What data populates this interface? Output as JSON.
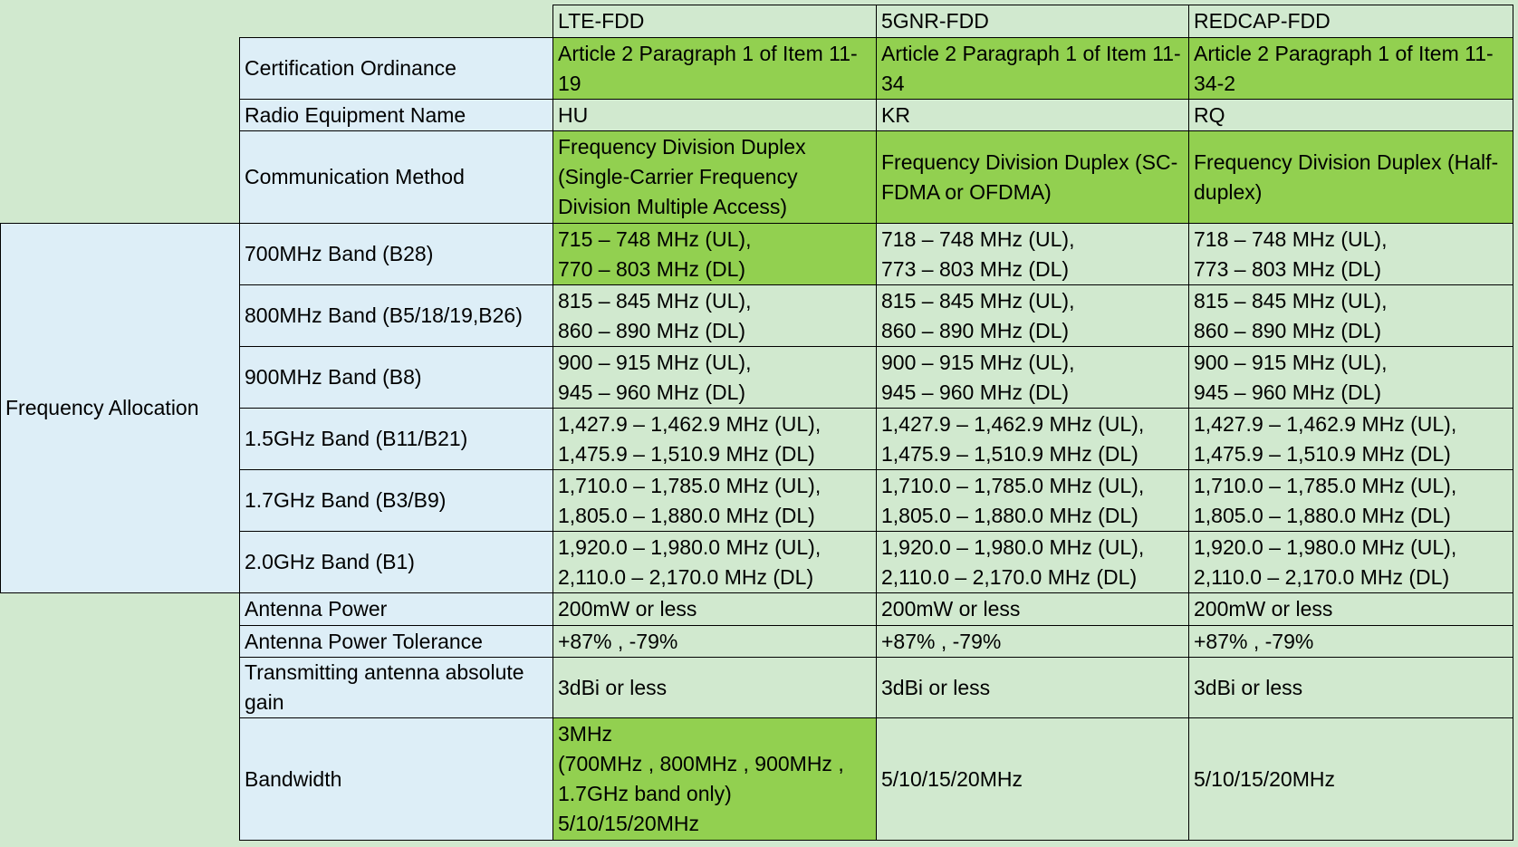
{
  "table": {
    "columns": [
      "LTE-FDD",
      "5GNR-FDD",
      "REDCAP-FDD"
    ],
    "group": "Frequency Allocation",
    "rows": [
      {
        "label": "Certification Ordinance",
        "cells": [
          "Article 2 Paragraph 1 of Item 11-19",
          "Article 2 Paragraph 1 of Item 11-34",
          "Article 2 Paragraph 1 of Item 11-34-2"
        ]
      },
      {
        "label": "Radio Equipment Name",
        "cells": [
          "HU",
          "KR",
          "RQ"
        ]
      },
      {
        "label": "Communication Method",
        "cells": [
          "Frequency Division Duplex (Single-Carrier Frequency Division Multiple Access)",
          "Frequency Division Duplex (SC-FDMA or OFDMA)",
          "Frequency Division Duplex (Half-duplex)"
        ]
      },
      {
        "label": "700MHz Band (B28)",
        "cells": [
          "715 – 748 MHz (UL),\n770 – 803 MHz (DL)",
          "718 – 748 MHz (UL),\n773 – 803 MHz (DL)",
          "718 – 748 MHz (UL),\n773 – 803 MHz (DL)"
        ]
      },
      {
        "label": "800MHz Band (B5/18/19,B26)",
        "cells": [
          "815 – 845 MHz (UL),\n860 – 890 MHz (DL)",
          "815 – 845 MHz (UL),\n860 – 890 MHz (DL)",
          "815 – 845 MHz (UL),\n860 – 890 MHz (DL)"
        ]
      },
      {
        "label": "900MHz Band (B8)",
        "cells": [
          "900 – 915 MHz (UL),\n945 – 960 MHz (DL)",
          "900 – 915 MHz (UL),\n945 – 960 MHz (DL)",
          "900 – 915 MHz (UL),\n945 – 960 MHz (DL)"
        ]
      },
      {
        "label": "1.5GHz Band (B11/B21)",
        "cells": [
          "1,427.9 – 1,462.9 MHz (UL),\n1,475.9 – 1,510.9 MHz (DL)",
          "1,427.9 – 1,462.9 MHz (UL),\n1,475.9 – 1,510.9 MHz (DL)",
          "1,427.9 – 1,462.9 MHz (UL),\n1,475.9 – 1,510.9 MHz (DL)"
        ]
      },
      {
        "label": "1.7GHz Band (B3/B9)",
        "cells": [
          "1,710.0 – 1,785.0 MHz (UL),\n1,805.0 – 1,880.0 MHz (DL)",
          "1,710.0 – 1,785.0 MHz (UL),\n1,805.0 – 1,880.0 MHz (DL)",
          "1,710.0 – 1,785.0 MHz (UL),\n1,805.0 – 1,880.0 MHz (DL)"
        ]
      },
      {
        "label": "2.0GHz Band (B1)",
        "cells": [
          "1,920.0 – 1,980.0 MHz (UL),\n2,110.0 – 2,170.0 MHz (DL)",
          "1,920.0 – 1,980.0 MHz (UL),\n2,110.0 – 2,170.0 MHz (DL)",
          "1,920.0 – 1,980.0 MHz (UL),\n2,110.0 – 2,170.0 MHz (DL)"
        ]
      },
      {
        "label": "Antenna Power",
        "cells": [
          "200mW or less",
          "200mW or less",
          "200mW or less"
        ]
      },
      {
        "label": "Antenna Power Tolerance",
        "cells": [
          "+87% , -79%",
          "+87% , -79%",
          "+87% , -79%"
        ]
      },
      {
        "label": "Transmitting antenna absolute gain",
        "cells": [
          "3dBi or less",
          "3dBi or less",
          "3dBi or less"
        ]
      },
      {
        "label": "Bandwidth",
        "cells": [
          "3MHz\n(700MHz , 800MHz , 900MHz , 1.7GHz band only)\n5/10/15/20MHz",
          "5/10/15/20MHz",
          "5/10/15/20MHz"
        ]
      }
    ]
  }
}
